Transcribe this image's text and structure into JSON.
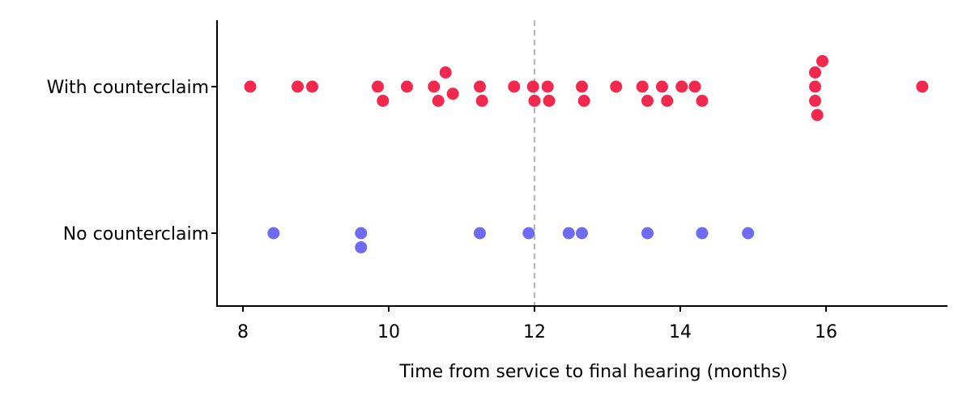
{
  "chart_data": {
    "type": "scatter",
    "xlabel": "Time from service to final hearing (months)",
    "ylabel": "",
    "xlim": [
      7.6,
      17.6
    ],
    "x_ticks": [
      8,
      10,
      12,
      14,
      16
    ],
    "reference_line": {
      "x": 12,
      "style": "dashed",
      "color": "#b3b3b3"
    },
    "grid": false,
    "categories": [
      "With counterclaim",
      "No counterclaim"
    ],
    "series": [
      {
        "category": "With counterclaim",
        "color": "#f2294f",
        "points": [
          {
            "x": 8.1,
            "lane": 0
          },
          {
            "x": 8.75,
            "lane": 0
          },
          {
            "x": 8.95,
            "lane": 0
          },
          {
            "x": 9.85,
            "lane": 0
          },
          {
            "x": 9.92,
            "lane": 1
          },
          {
            "x": 10.25,
            "lane": 0
          },
          {
            "x": 10.62,
            "lane": 0
          },
          {
            "x": 10.68,
            "lane": 1
          },
          {
            "x": 10.78,
            "lane": -1
          },
          {
            "x": 10.88,
            "lane": 0.5
          },
          {
            "x": 11.25,
            "lane": 0
          },
          {
            "x": 11.28,
            "lane": 1
          },
          {
            "x": 11.72,
            "lane": 0
          },
          {
            "x": 11.98,
            "lane": 0
          },
          {
            "x": 12.0,
            "lane": 1
          },
          {
            "x": 12.18,
            "lane": 0
          },
          {
            "x": 12.2,
            "lane": 1
          },
          {
            "x": 12.65,
            "lane": 0
          },
          {
            "x": 12.68,
            "lane": 1
          },
          {
            "x": 13.12,
            "lane": 0
          },
          {
            "x": 13.48,
            "lane": 0
          },
          {
            "x": 13.55,
            "lane": 1
          },
          {
            "x": 13.75,
            "lane": 0
          },
          {
            "x": 13.82,
            "lane": 1
          },
          {
            "x": 14.02,
            "lane": 0
          },
          {
            "x": 14.2,
            "lane": 0
          },
          {
            "x": 14.3,
            "lane": 1
          },
          {
            "x": 15.85,
            "lane": 0
          },
          {
            "x": 15.85,
            "lane": 1
          },
          {
            "x": 15.85,
            "lane": -1
          },
          {
            "x": 15.88,
            "lane": 2
          },
          {
            "x": 15.95,
            "lane": -1.8
          },
          {
            "x": 17.32,
            "lane": 0
          }
        ]
      },
      {
        "category": "No counterclaim",
        "color": "#6e6af2",
        "points": [
          {
            "x": 8.42,
            "lane": 0
          },
          {
            "x": 9.62,
            "lane": 0
          },
          {
            "x": 9.62,
            "lane": 1
          },
          {
            "x": 11.25,
            "lane": 0
          },
          {
            "x": 11.92,
            "lane": 0
          },
          {
            "x": 12.47,
            "lane": 0
          },
          {
            "x": 12.65,
            "lane": 0
          },
          {
            "x": 13.55,
            "lane": 0
          },
          {
            "x": 14.3,
            "lane": 0
          },
          {
            "x": 14.93,
            "lane": 0
          }
        ]
      }
    ]
  }
}
